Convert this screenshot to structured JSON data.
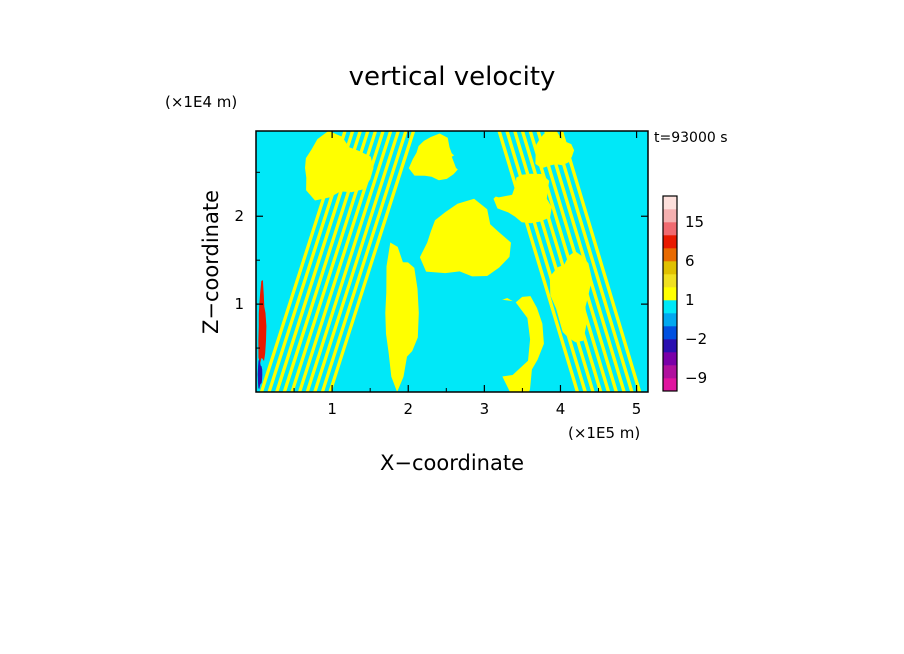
{
  "chart_data": {
    "type": "heatmap",
    "title": "vertical velocity",
    "xlabel": "X−coordinate",
    "ylabel": "Z−coordinate",
    "x_unit": "(×1E5 m)",
    "y_unit": "(×1E4 m)",
    "time_label": "t=93000 s",
    "xlim": [
      0,
      5.15
    ],
    "ylim": [
      0,
      2.97
    ],
    "x_ticks": [
      {
        "value": 1,
        "label": "1"
      },
      {
        "value": 2,
        "label": "2"
      },
      {
        "value": 3,
        "label": "3"
      },
      {
        "value": 4,
        "label": "4"
      },
      {
        "value": 5,
        "label": "5"
      }
    ],
    "y_ticks": [
      {
        "value": 1,
        "label": "1"
      },
      {
        "value": 2,
        "label": "2"
      }
    ],
    "colorbar": {
      "levels_bottom_to_top": [
        -12,
        -9,
        -6,
        -3,
        -2,
        -1,
        0,
        1,
        2,
        3,
        6,
        9,
        12,
        15,
        18,
        22
      ],
      "colors_bottom_to_top": [
        "#e0149f",
        "#b0109e",
        "#7a00a8",
        "#2a10b0",
        "#0050e0",
        "#00a8f0",
        "#00e8f8",
        "#ffff00",
        "#f0e020",
        "#e0c000",
        "#e86a00",
        "#e81a00",
        "#f06a70",
        "#f4b0b0",
        "#fde0dc"
      ],
      "labels": [
        {
          "value": -9,
          "label": "−9"
        },
        {
          "value": -2,
          "label": "−2"
        },
        {
          "value": 1,
          "label": "1"
        },
        {
          "value": 6,
          "label": "6"
        },
        {
          "value": 15,
          "label": "15"
        }
      ]
    },
    "dominant_colors": {
      "positive": "#ffff00",
      "negative": "#00e8f8",
      "strong_positive": "#e81a00",
      "strong_negative": "#2a10b0"
    },
    "field_regions": [
      {
        "sign": "positive",
        "shape": "blob",
        "cx": 2.75,
        "cz": 1.7,
        "rx": 0.55,
        "rz": 0.42
      },
      {
        "sign": "positive",
        "shape": "blob",
        "cx": 1.05,
        "cz": 2.55,
        "rx": 0.45,
        "rz": 0.35
      },
      {
        "sign": "positive",
        "shape": "blob",
        "cx": 1.9,
        "cz": 0.9,
        "rx": 0.22,
        "rz": 0.75
      },
      {
        "sign": "positive",
        "shape": "blob",
        "cx": 3.45,
        "cz": 0.55,
        "rx": 0.3,
        "rz": 0.6
      },
      {
        "sign": "positive",
        "shape": "blob",
        "cx": 4.15,
        "cz": 1.1,
        "rx": 0.25,
        "rz": 0.5
      },
      {
        "sign": "positive",
        "shape": "blob",
        "cx": 3.55,
        "cz": 2.2,
        "rx": 0.35,
        "rz": 0.28
      },
      {
        "sign": "positive",
        "shape": "blob",
        "cx": 2.35,
        "cz": 2.65,
        "rx": 0.3,
        "rz": 0.25
      },
      {
        "sign": "positive",
        "shape": "blob",
        "cx": 3.9,
        "cz": 2.75,
        "rx": 0.25,
        "rz": 0.2
      },
      {
        "sign": "negative",
        "shape": "blob",
        "cx": 2.85,
        "cz": 0.6,
        "rx": 0.7,
        "rz": 0.65
      },
      {
        "sign": "negative",
        "shape": "blob",
        "cx": 1.5,
        "cz": 1.9,
        "rx": 0.25,
        "rz": 0.35
      },
      {
        "sign": "negative",
        "shape": "blob",
        "cx": 3.1,
        "cz": 2.55,
        "rx": 0.45,
        "rz": 0.3
      },
      {
        "sign": "positive",
        "shape": "stripes",
        "x0": 0.05,
        "x1": 1.05,
        "z0": 0.0,
        "z1": 2.97,
        "count": 10,
        "tilt": 0.32
      },
      {
        "sign": "positive",
        "shape": "stripes",
        "x0": 4.2,
        "x1": 5.12,
        "z0": 0.0,
        "z1": 2.97,
        "count": 9,
        "tilt": -0.3
      },
      {
        "sign": "strong_positive",
        "shape": "blob",
        "cx": 0.08,
        "cz": 0.75,
        "rx": 0.05,
        "rz": 0.45
      },
      {
        "sign": "strong_negative",
        "shape": "blob",
        "cx": 0.05,
        "cz": 0.2,
        "rx": 0.03,
        "rz": 0.15
      }
    ]
  }
}
